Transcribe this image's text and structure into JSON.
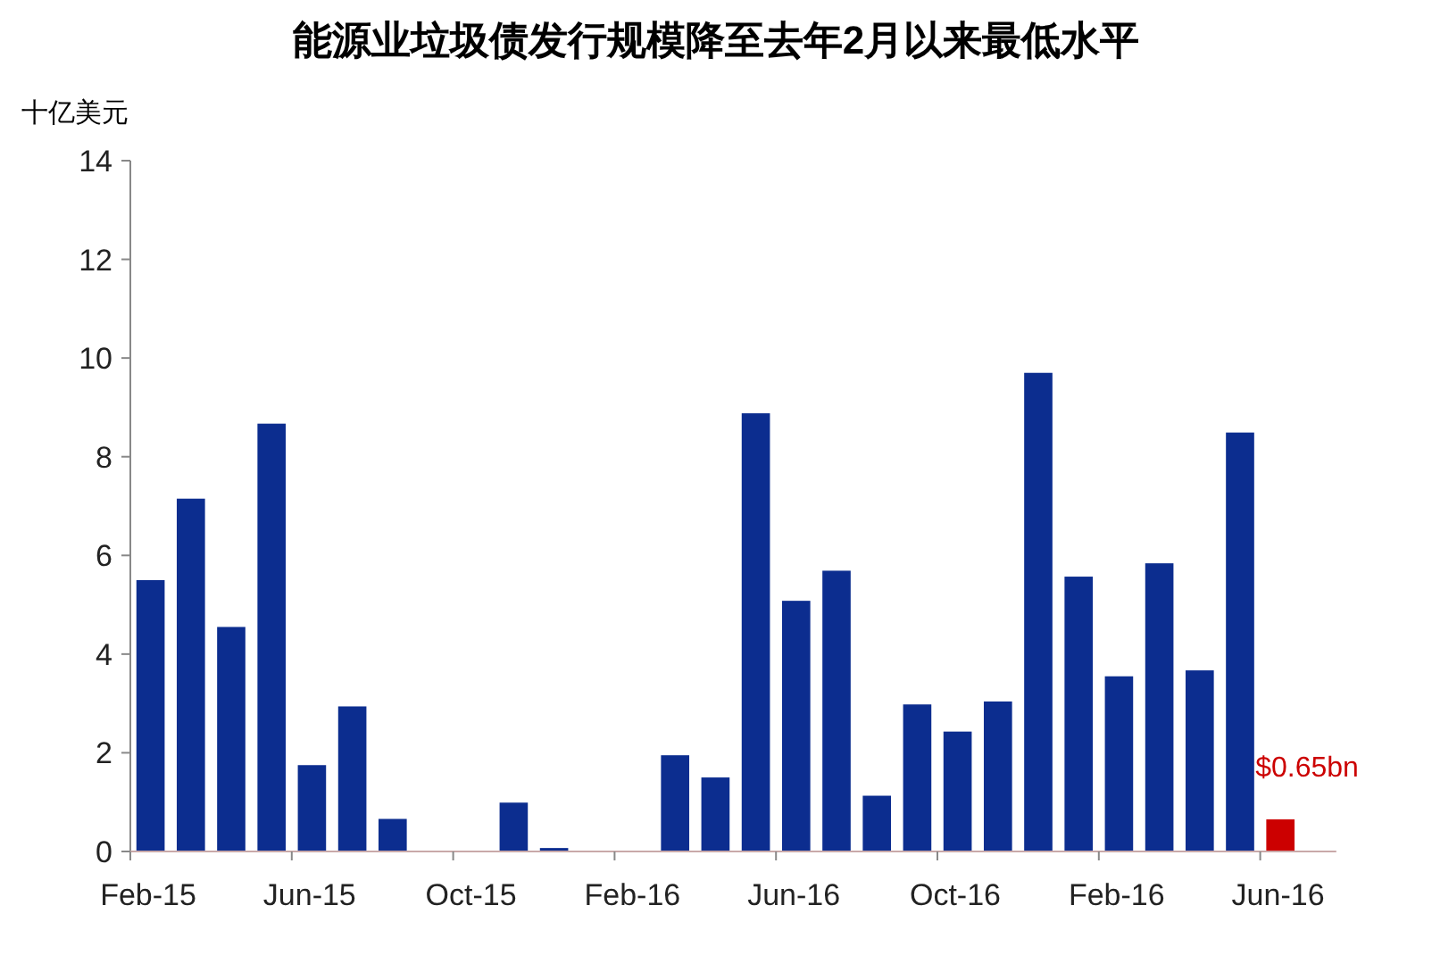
{
  "chart_data": {
    "type": "bar",
    "title": "能源业垃圾债发行规模降至去年2月以来最低水平",
    "ylabel": "十亿美元",
    "categories": [
      "Feb-15",
      null,
      null,
      null,
      "Jun-15",
      null,
      null,
      null,
      "Oct-15",
      null,
      null,
      null,
      "Feb-16",
      null,
      null,
      null,
      "Jun-16",
      null,
      null,
      null,
      "Oct-16",
      null,
      null,
      null,
      "Feb-16",
      null,
      null,
      null,
      "Jun-16"
    ],
    "values": [
      5.5,
      7.15,
      4.55,
      8.67,
      1.75,
      2.94,
      0.66,
      0,
      0,
      0.99,
      0.07,
      0,
      0,
      1.95,
      1.5,
      8.88,
      5.08,
      5.69,
      1.13,
      2.98,
      2.43,
      3.04,
      9.7,
      5.57,
      3.55,
      5.84,
      3.67,
      8.49,
      0.65
    ],
    "colors": [
      "#0c2d8f",
      "#0c2d8f",
      "#0c2d8f",
      "#0c2d8f",
      "#0c2d8f",
      "#0c2d8f",
      "#0c2d8f",
      "#0c2d8f",
      "#0c2d8f",
      "#0c2d8f",
      "#0c2d8f",
      "#0c2d8f",
      "#0c2d8f",
      "#0c2d8f",
      "#0c2d8f",
      "#0c2d8f",
      "#0c2d8f",
      "#0c2d8f",
      "#0c2d8f",
      "#0c2d8f",
      "#0c2d8f",
      "#0c2d8f",
      "#0c2d8f",
      "#0c2d8f",
      "#0c2d8f",
      "#0c2d8f",
      "#0c2d8f",
      "#0c2d8f",
      "#cc0000"
    ],
    "value_labels": [
      null,
      null,
      null,
      null,
      null,
      null,
      null,
      null,
      null,
      null,
      null,
      null,
      null,
      null,
      null,
      null,
      null,
      null,
      null,
      null,
      null,
      null,
      null,
      null,
      null,
      null,
      null,
      null,
      "$0.65bn"
    ],
    "ylim": [
      0,
      14
    ],
    "yticks": [
      0,
      2,
      4,
      6,
      8,
      10,
      12,
      14
    ]
  }
}
